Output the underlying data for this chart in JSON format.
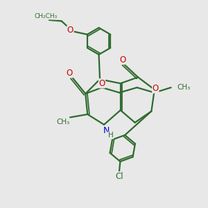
{
  "background_color": "#e8e8e8",
  "bond_color": "#2d6b2d",
  "bond_width": 1.6,
  "atom_colors": {
    "O": "#cc0000",
    "N": "#0000cc",
    "Cl": "#2d6b2d",
    "C": "#2d6b2d",
    "H": "#2d6b2d"
  },
  "font_size_atom": 8.5,
  "xlim": [
    0,
    10
  ],
  "ylim": [
    0,
    10
  ]
}
